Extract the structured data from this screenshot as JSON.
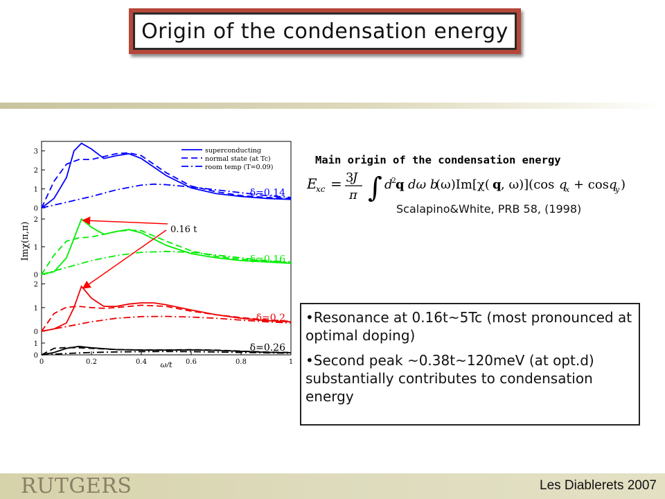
{
  "slide": {
    "title": "Origin of the condensation energy",
    "equation_heading": "Main origin of the condensation energy",
    "citation": "Scalapino&White, PRB 58, (1998)",
    "bullets": [
      "•Resonance at 0.16t~5Tc (most pronounced at optimal doping)",
      "•Second peak ~0.38t~120meV (at opt.d) substantially contributes to condensation energy"
    ],
    "footer": "Les Diablerets 2007",
    "logo": "RUTGERS"
  },
  "colors": {
    "title_frame": "#b5483a",
    "blue": "#0000ff",
    "green": "#00ee00",
    "red": "#ee0000",
    "black": "#000000",
    "arrow": "#ff0000"
  },
  "chart_data": {
    "type": "line",
    "xlabel": "ω/t",
    "ylabel": "Imχ(π,π)",
    "x_ticks": [
      "0",
      "0.2",
      "0.4",
      "0.6",
      "0.8",
      "1"
    ],
    "xlim": [
      0,
      1
    ],
    "legend": [
      "superconducting",
      "normal state (at Tc)",
      "room temp (T=0.09)"
    ],
    "legend_position": "top-right",
    "annotation": "0.16 t",
    "panels": [
      {
        "label": "δ=0.14",
        "color": "#0000ff",
        "y_ticks": [
          "0",
          "1",
          "2",
          "3"
        ],
        "ylim": [
          0,
          3.5
        ],
        "series": [
          {
            "name": "superconducting",
            "x": [
              0,
              0.05,
              0.1,
              0.13,
              0.16,
              0.2,
              0.25,
              0.3,
              0.35,
              0.4,
              0.5,
              0.6,
              0.7,
              0.8,
              0.9,
              1.0
            ],
            "y": [
              0,
              0.5,
              1.6,
              3.0,
              3.4,
              3.1,
              2.6,
              2.75,
              2.85,
              2.6,
              1.7,
              1.05,
              0.75,
              0.6,
              0.5,
              0.45
            ]
          },
          {
            "name": "normal state (at Tc)",
            "x": [
              0,
              0.05,
              0.1,
              0.15,
              0.2,
              0.25,
              0.3,
              0.35,
              0.4,
              0.5,
              0.6,
              0.7,
              0.8,
              0.9,
              1.0
            ],
            "y": [
              0,
              1.4,
              2.3,
              2.55,
              2.55,
              2.7,
              2.85,
              2.9,
              2.75,
              1.85,
              1.15,
              0.85,
              0.65,
              0.55,
              0.5
            ]
          },
          {
            "name": "room temp (T=0.09)",
            "x": [
              0,
              0.1,
              0.2,
              0.3,
              0.4,
              0.45,
              0.5,
              0.6,
              0.7,
              0.8,
              0.9,
              1.0
            ],
            "y": [
              0,
              0.3,
              0.6,
              0.95,
              1.2,
              1.25,
              1.22,
              1.1,
              0.95,
              0.8,
              0.65,
              0.55
            ]
          }
        ]
      },
      {
        "label": "δ=0.16",
        "color": "#00ee00",
        "y_ticks": [
          "0",
          "1",
          "2"
        ],
        "ylim": [
          0,
          2.4
        ],
        "series": [
          {
            "name": "superconducting",
            "x": [
              0,
              0.05,
              0.1,
              0.13,
              0.16,
              0.2,
              0.25,
              0.3,
              0.35,
              0.4,
              0.5,
              0.6,
              0.7,
              0.8,
              0.9,
              1.0
            ],
            "y": [
              0,
              0.1,
              0.6,
              1.3,
              2.0,
              1.7,
              1.45,
              1.55,
              1.62,
              1.5,
              1.05,
              0.75,
              0.6,
              0.5,
              0.45,
              0.4
            ]
          },
          {
            "name": "normal state (at Tc)",
            "x": [
              0,
              0.05,
              0.1,
              0.15,
              0.2,
              0.25,
              0.3,
              0.35,
              0.4,
              0.5,
              0.6,
              0.7,
              0.8,
              0.9,
              1.0
            ],
            "y": [
              0,
              0.7,
              1.2,
              1.32,
              1.35,
              1.45,
              1.55,
              1.6,
              1.58,
              1.2,
              0.85,
              0.65,
              0.55,
              0.48,
              0.42
            ]
          },
          {
            "name": "room temp (T=0.09)",
            "x": [
              0,
              0.1,
              0.2,
              0.3,
              0.4,
              0.5,
              0.6,
              0.7,
              0.8,
              0.9,
              1.0
            ],
            "y": [
              0,
              0.25,
              0.5,
              0.68,
              0.8,
              0.83,
              0.8,
              0.7,
              0.6,
              0.5,
              0.45
            ]
          }
        ]
      },
      {
        "label": "δ=0.2",
        "color": "#ee0000",
        "y_ticks": [
          "0",
          "1",
          "2"
        ],
        "ylim": [
          0,
          2.4
        ],
        "series": [
          {
            "name": "superconducting",
            "x": [
              0,
              0.05,
              0.1,
              0.13,
              0.16,
              0.2,
              0.25,
              0.3,
              0.35,
              0.4,
              0.45,
              0.5,
              0.6,
              0.7,
              0.8,
              0.9,
              1.0
            ],
            "y": [
              0,
              0.1,
              0.35,
              1.0,
              1.9,
              1.4,
              1.05,
              1.05,
              1.15,
              1.2,
              1.2,
              1.12,
              0.9,
              0.7,
              0.55,
              0.45,
              0.4
            ]
          },
          {
            "name": "normal state (at Tc)",
            "x": [
              0,
              0.05,
              0.1,
              0.15,
              0.2,
              0.25,
              0.3,
              0.35,
              0.4,
              0.5,
              0.6,
              0.7,
              0.8,
              0.9,
              1.0
            ],
            "y": [
              0,
              0.75,
              1.02,
              1.05,
              1.0,
              0.97,
              1.0,
              1.05,
              1.1,
              1.05,
              0.85,
              0.7,
              0.58,
              0.48,
              0.42
            ]
          },
          {
            "name": "room temp (T=0.09)",
            "x": [
              0,
              0.1,
              0.2,
              0.3,
              0.4,
              0.5,
              0.6,
              0.7,
              0.8,
              0.9,
              1.0
            ],
            "y": [
              0,
              0.2,
              0.4,
              0.55,
              0.62,
              0.63,
              0.6,
              0.55,
              0.47,
              0.4,
              0.35
            ]
          }
        ]
      },
      {
        "label": "δ=0.26",
        "color": "#000000",
        "y_ticks": [
          "0",
          "1"
        ],
        "ylim": [
          0,
          2.0
        ],
        "series": [
          {
            "name": "superconducting",
            "x": [
              0,
              0.05,
              0.1,
              0.15,
              0.2,
              0.3,
              0.4,
              0.5,
              0.6,
              0.7,
              0.8,
              0.9,
              1.0
            ],
            "y": [
              0,
              0.2,
              0.55,
              0.72,
              0.6,
              0.45,
              0.4,
              0.4,
              0.42,
              0.38,
              0.3,
              0.22,
              0.18
            ]
          },
          {
            "name": "normal state (at Tc)",
            "x": [
              0,
              0.05,
              0.1,
              0.15,
              0.2,
              0.3,
              0.4,
              0.5,
              0.6,
              0.7,
              0.8,
              0.9,
              1.0
            ],
            "y": [
              0,
              0.55,
              0.62,
              0.6,
              0.55,
              0.45,
              0.42,
              0.42,
              0.44,
              0.4,
              0.32,
              0.24,
              0.2
            ]
          },
          {
            "name": "room temp (T=0.09)",
            "x": [
              0,
              0.1,
              0.2,
              0.3,
              0.4,
              0.5,
              0.6,
              0.7,
              0.8,
              0.9,
              1.0
            ],
            "y": [
              0,
              0.12,
              0.2,
              0.25,
              0.27,
              0.28,
              0.27,
              0.24,
              0.2,
              0.17,
              0.14
            ]
          }
        ]
      }
    ]
  }
}
